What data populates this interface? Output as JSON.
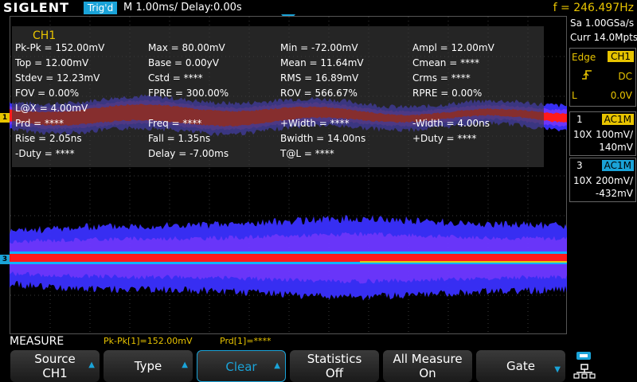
{
  "topbar": {
    "brand": "SIGLENT",
    "trigger_status": "Trig'd",
    "timebase": "M 1.00ms/ Delay:0.00s",
    "frequency": "f = 246.497Hz"
  },
  "measure_panel": {
    "channel": "CH1",
    "cells": [
      [
        "Pk-Pk = 152.00mV",
        "Max = 80.00mV",
        "Min = -72.00mV",
        "Ampl = 12.00mV"
      ],
      [
        "Top = 12.00mV",
        "Base = 0.00yV",
        "Mean = 11.64mV",
        "Cmean = ****"
      ],
      [
        "Stdev = 12.23mV",
        "Cstd = ****",
        "RMS = 16.89mV",
        "Crms = ****"
      ],
      [
        "FOV = 0.00%",
        "FPRE = 300.00%",
        "ROV = 566.67%",
        "RPRE = 0.00%"
      ],
      [
        "L@X = 4.00mV",
        "",
        "",
        ""
      ],
      [
        "Prd = ****",
        "Freq = ****",
        "+Width = ****",
        "-Width = 4.00ns"
      ],
      [
        "Rise = 2.05ns",
        "Fall = 1.35ns",
        "Bwidth = 14.00ns",
        "+Duty = ****"
      ],
      [
        "-Duty = ****",
        "Delay = -7.00ms",
        "T@L = ****",
        ""
      ]
    ]
  },
  "channel_markers": {
    "ch1": "1",
    "ch3": "3"
  },
  "side_panel": {
    "sample_rate": "Sa 1.00GSa/s",
    "memory": "Curr 14.0Mpts",
    "trigger": {
      "type": "Edge",
      "source": "CH1",
      "slope_icon": "rising-edge-icon",
      "coupling": "DC",
      "level_label": "L",
      "level": "0.0V"
    },
    "ch1": {
      "number": "1",
      "coupling": "AC1M",
      "probe": "10X",
      "scale": "100mV/",
      "offset": "140mV"
    },
    "ch3": {
      "number": "3",
      "coupling": "AC1M",
      "probe": "10X",
      "scale": "200mV/",
      "offset": "-432mV"
    }
  },
  "bottom": {
    "title": "MEASURE",
    "result1": "Pk-Pk[1]=152.00mV",
    "result2": "Prd[1]=****"
  },
  "softkeys": [
    {
      "line1": "Source",
      "line2": "CH1"
    },
    {
      "line1": "Type",
      "line2": ""
    },
    {
      "line1": "Clear",
      "line2": ""
    },
    {
      "line1": "Statistics",
      "line2": "Off"
    },
    {
      "line1": "All Measure",
      "line2": "On"
    },
    {
      "line1": "Gate",
      "line2": ""
    }
  ],
  "colors": {
    "accent": "#1aa3d8",
    "ch1": "#e8c400",
    "ch3": "#1aa3d8",
    "trace_red": "#ff1a1a",
    "trace_blue": "#3a30ff",
    "trace_purple": "#9b3cff"
  }
}
